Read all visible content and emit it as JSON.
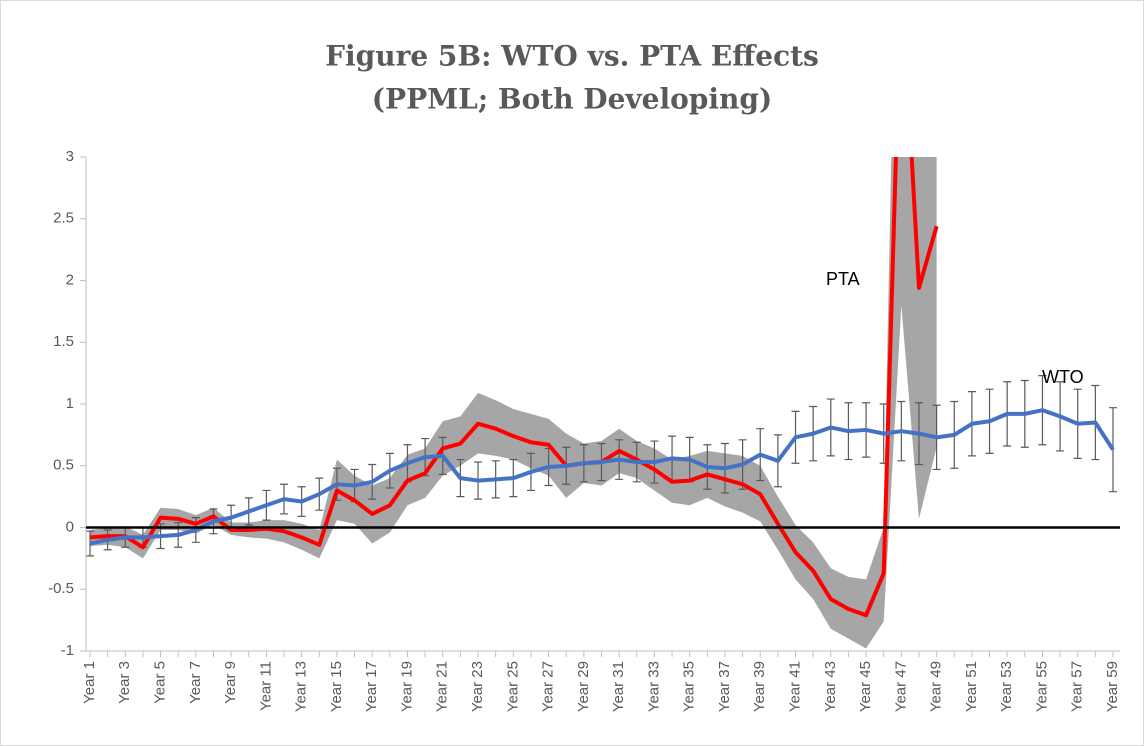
{
  "chart_data": {
    "type": "line",
    "title": "Figure 5B: WTO vs. PTA Effects",
    "subtitle": "(PPML; Both Developing)",
    "categories": [
      "Year 1",
      null,
      "Year 3",
      null,
      "Year 5",
      null,
      "Year 7",
      null,
      "Year 9",
      null,
      "Year 11",
      null,
      "Year 13",
      null,
      "Year 15",
      null,
      "Year 17",
      null,
      "Year 19",
      null,
      "Year 21",
      null,
      "Year 23",
      null,
      "Year 25",
      null,
      "Year 27",
      null,
      "Year 29",
      null,
      "Year 31",
      null,
      "Year 33",
      null,
      "Year 35",
      null,
      "Year 37",
      null,
      "Year 39",
      null,
      "Year 41",
      null,
      "Year 43",
      null,
      "Year 45",
      null,
      "Year 47",
      null,
      "Year 49",
      null,
      "Year 51",
      null,
      "Year 53",
      null,
      "Year 55",
      null,
      "Year 57",
      null,
      "Year 59"
    ],
    "series": [
      {
        "name": "WTO",
        "color": "#4472c4",
        "error_color": "#595959",
        "values": [
          -0.13,
          -0.1,
          -0.08,
          -0.08,
          -0.07,
          -0.06,
          -0.02,
          0.05,
          0.08,
          0.13,
          0.18,
          0.23,
          0.21,
          0.27,
          0.35,
          0.34,
          0.37,
          0.46,
          0.52,
          0.57,
          0.58,
          0.4,
          0.38,
          0.39,
          0.4,
          0.45,
          0.49,
          0.5,
          0.52,
          0.53,
          0.55,
          0.53,
          0.53,
          0.56,
          0.55,
          0.49,
          0.48,
          0.51,
          0.59,
          0.54,
          0.73,
          0.76,
          0.81,
          0.78,
          0.79,
          0.76,
          0.78,
          0.76,
          0.73,
          0.75,
          0.84,
          0.86,
          0.92,
          0.92,
          0.95,
          0.9,
          0.84,
          0.85,
          0.63
        ],
        "errors": [
          0.1,
          0.08,
          0.08,
          0.08,
          0.1,
          0.1,
          0.1,
          0.1,
          0.1,
          0.11,
          0.12,
          0.12,
          0.12,
          0.13,
          0.13,
          0.13,
          0.14,
          0.14,
          0.15,
          0.15,
          0.15,
          0.15,
          0.15,
          0.15,
          0.15,
          0.15,
          0.15,
          0.15,
          0.15,
          0.15,
          0.16,
          0.16,
          0.17,
          0.18,
          0.18,
          0.18,
          0.2,
          0.2,
          0.21,
          0.21,
          0.21,
          0.22,
          0.23,
          0.23,
          0.22,
          0.24,
          0.24,
          0.25,
          0.26,
          0.27,
          0.26,
          0.26,
          0.26,
          0.27,
          0.28,
          0.28,
          0.28,
          0.3,
          0.34
        ]
      },
      {
        "name": "PTA",
        "color": "#ff0000",
        "band_color": "#a6a6a6",
        "values": [
          -0.08,
          -0.07,
          -0.07,
          -0.16,
          0.08,
          0.07,
          0.03,
          0.09,
          -0.02,
          -0.02,
          -0.01,
          -0.03,
          -0.08,
          -0.14,
          0.3,
          0.22,
          0.11,
          0.18,
          0.38,
          0.44,
          0.64,
          0.68,
          0.84,
          0.8,
          0.74,
          0.69,
          0.67,
          0.5,
          0.52,
          0.53,
          0.62,
          0.55,
          0.47,
          0.37,
          0.38,
          0.43,
          0.39,
          0.35,
          0.27,
          0.03,
          -0.2,
          -0.35,
          -0.58,
          -0.66,
          -0.71,
          -0.37,
          4.5,
          1.94,
          2.44,
          null,
          null,
          null,
          null,
          null,
          null,
          null,
          null,
          null,
          null
        ],
        "lower": [
          -0.15,
          -0.14,
          -0.16,
          -0.25,
          -0.02,
          -0.02,
          -0.05,
          0.02,
          -0.06,
          -0.08,
          -0.09,
          -0.12,
          -0.18,
          -0.25,
          0.06,
          0.03,
          -0.13,
          -0.04,
          0.18,
          0.24,
          0.42,
          0.5,
          0.6,
          0.58,
          0.55,
          0.48,
          0.42,
          0.24,
          0.36,
          0.34,
          0.44,
          0.4,
          0.3,
          0.2,
          0.18,
          0.24,
          0.17,
          0.12,
          0.05,
          -0.18,
          -0.42,
          -0.58,
          -0.82,
          -0.9,
          -0.98,
          -0.76,
          1.8,
          0.07,
          0.65,
          null,
          null,
          null,
          null,
          null,
          null,
          null,
          null,
          null,
          null
        ],
        "upper": [
          -0.02,
          0.0,
          0.01,
          -0.06,
          0.16,
          0.15,
          0.1,
          0.16,
          0.04,
          0.04,
          0.06,
          0.06,
          0.03,
          -0.02,
          0.55,
          0.42,
          0.34,
          0.4,
          0.59,
          0.64,
          0.86,
          0.9,
          1.09,
          1.03,
          0.96,
          0.92,
          0.88,
          0.76,
          0.68,
          0.7,
          0.8,
          0.7,
          0.64,
          0.55,
          0.58,
          0.62,
          0.6,
          0.58,
          0.5,
          0.25,
          0.02,
          -0.12,
          -0.33,
          -0.4,
          -0.42,
          0.0,
          7.0,
          3.8,
          4.2,
          null,
          null,
          null,
          null,
          null,
          null,
          null,
          null,
          null,
          null
        ]
      }
    ],
    "ylim": [
      -1,
      3
    ],
    "yticks": [
      -1,
      -0.5,
      0,
      0.5,
      1,
      1.5,
      2,
      2.5,
      3
    ]
  }
}
